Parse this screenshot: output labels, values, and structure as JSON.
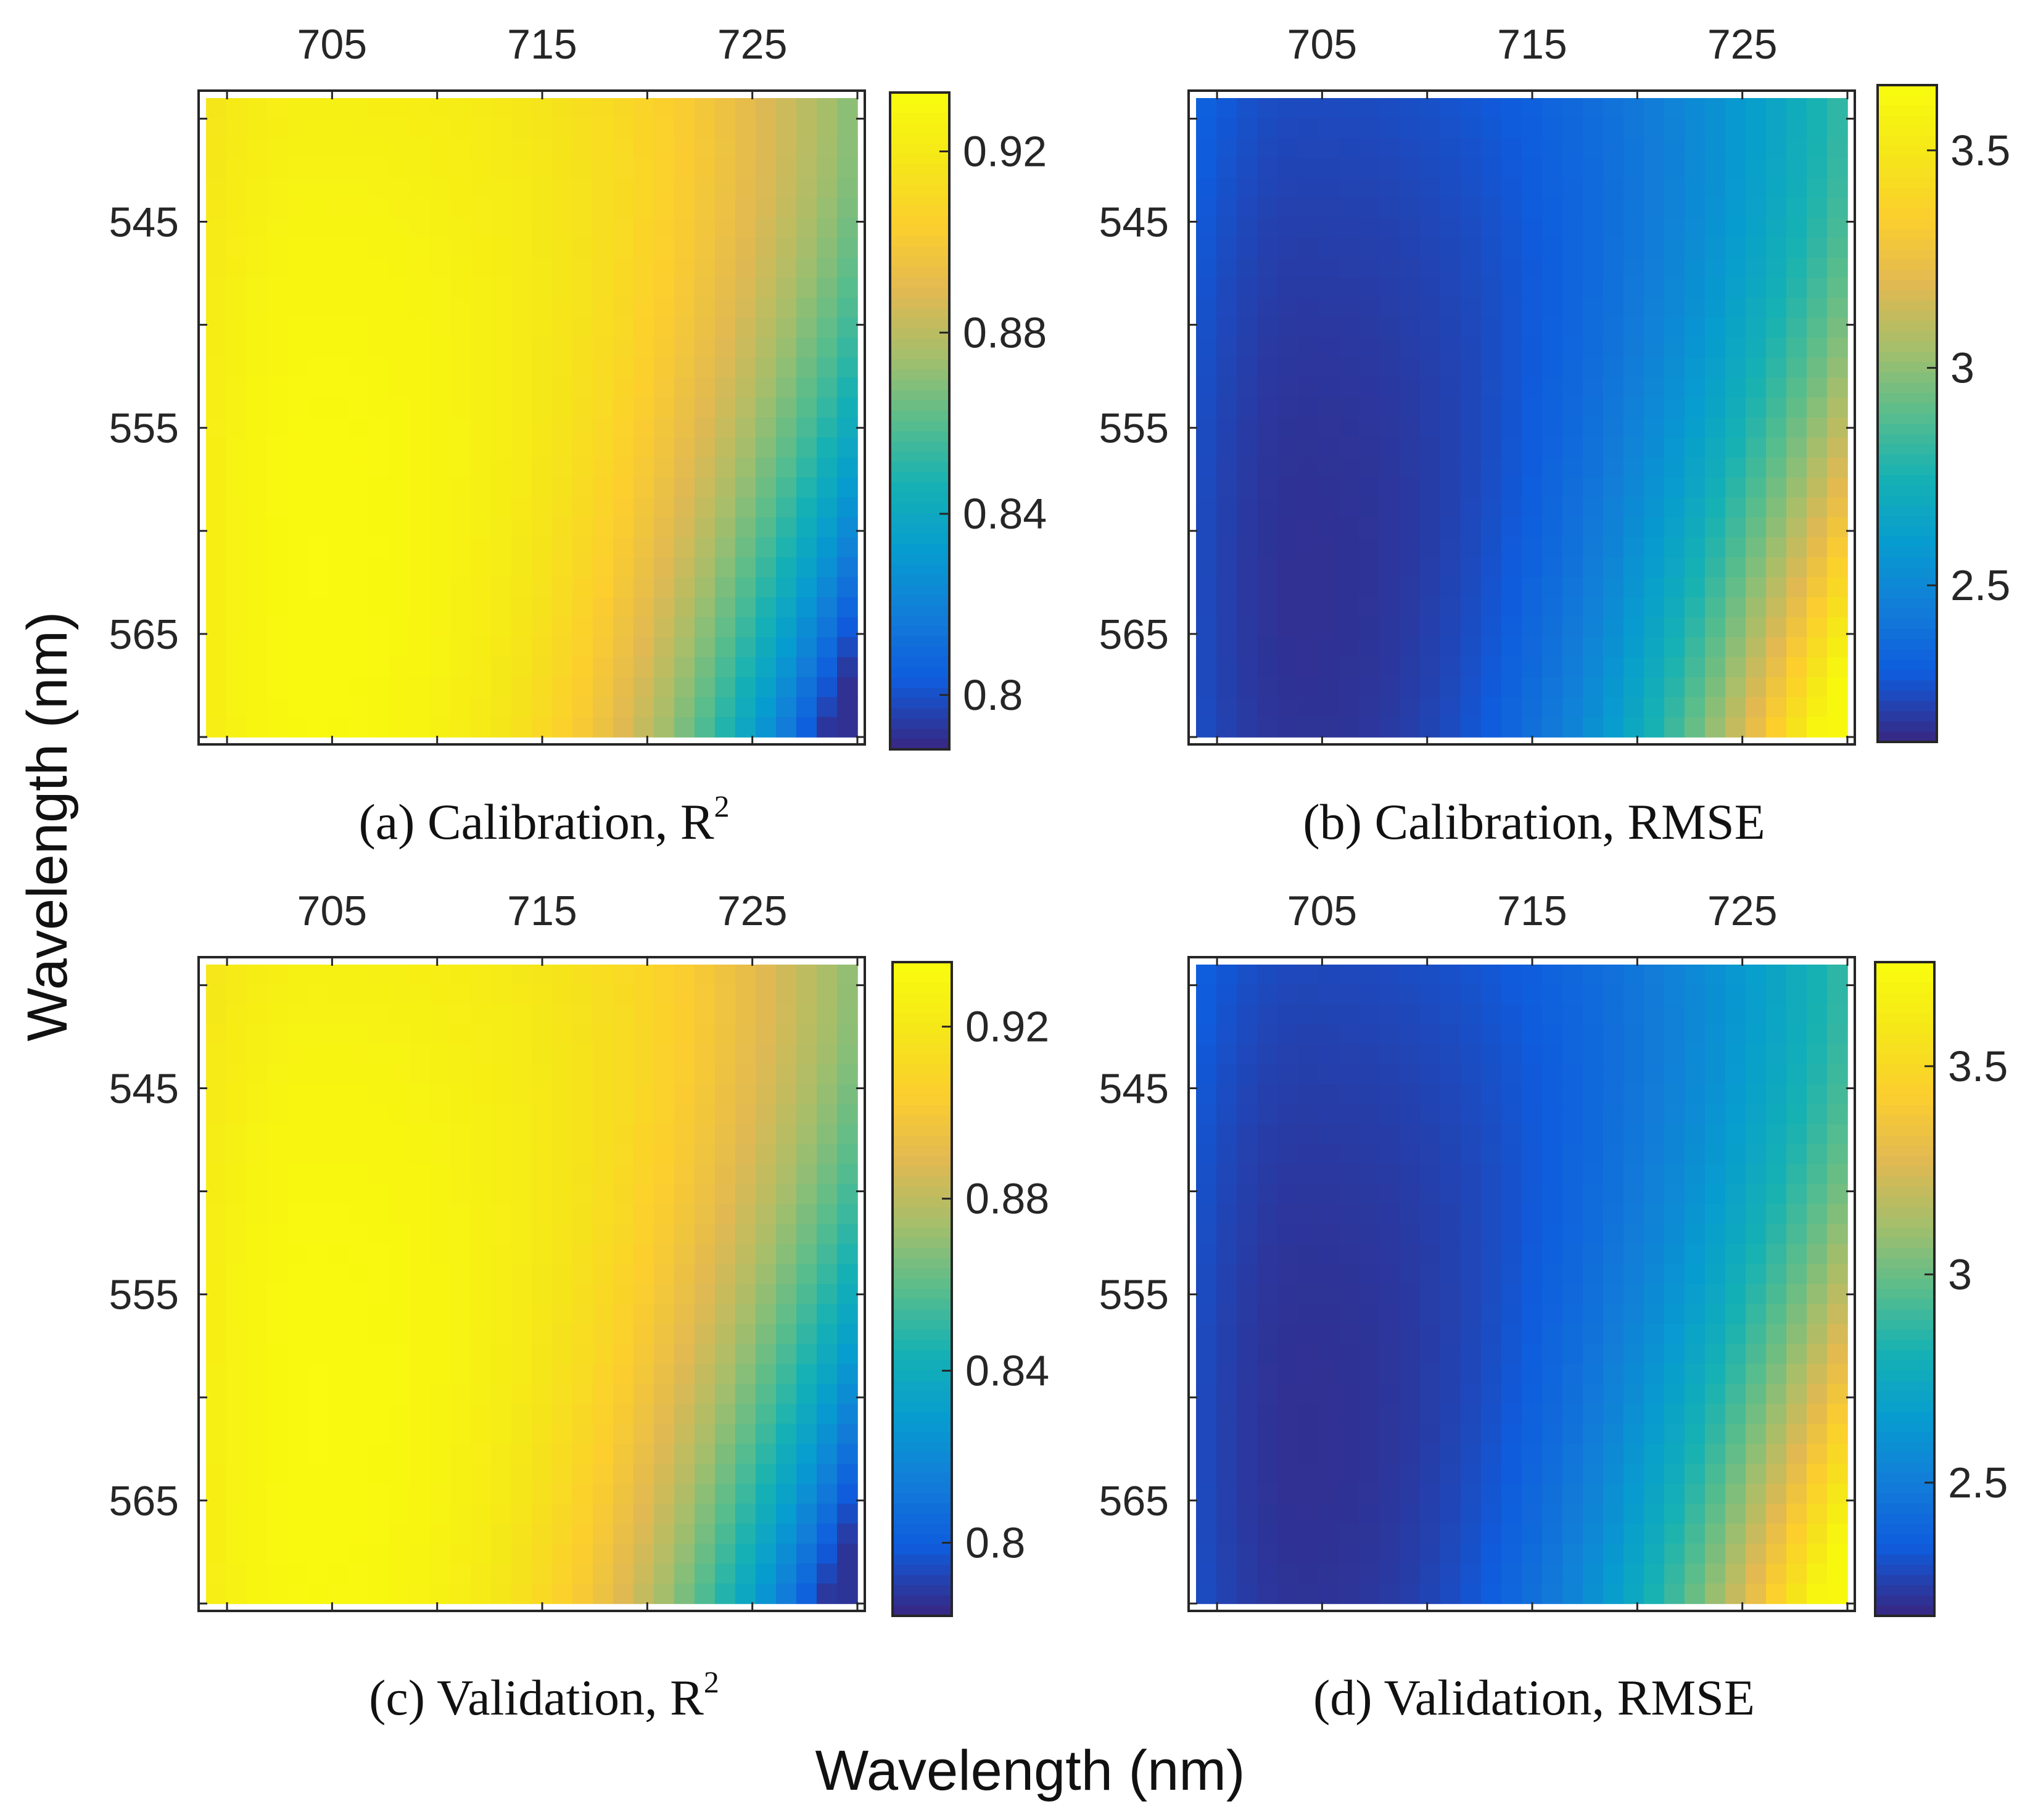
{
  "figure": {
    "xlabel": "Wavelength (nm)",
    "ylabel": "Wavelength (nm)"
  },
  "chart_data": [
    {
      "type": "heatmap",
      "id": "a",
      "caption": "(a) Calibration, R",
      "caption_sup": "2",
      "metric": "R2",
      "x_ticks": [
        "705",
        "715",
        "725"
      ],
      "y_ticks": [
        "545",
        "555",
        "565"
      ],
      "x_range": [
        699,
        730
      ],
      "y_range": [
        539,
        570
      ],
      "colorbar": {
        "min": 0.788,
        "max": 0.933,
        "ticks": [
          "0.92",
          "0.88",
          "0.84",
          "0.8"
        ],
        "tick_values": [
          0.92,
          0.88,
          0.84,
          0.8
        ]
      },
      "best": [
        704,
        562
      ],
      "value_best": 0.932,
      "value_worst": 0.79
    },
    {
      "type": "heatmap",
      "id": "b",
      "caption": "(b) Calibration, RMSE",
      "caption_sup": "",
      "metric": "RMSE",
      "x_ticks": [
        "705",
        "715",
        "725"
      ],
      "y_ticks": [
        "545",
        "555",
        "565"
      ],
      "x_range": [
        699,
        730
      ],
      "y_range": [
        539,
        570
      ],
      "colorbar": {
        "min": 2.14,
        "max": 3.65,
        "ticks": [
          "3.5",
          "3",
          "2.5"
        ],
        "tick_values": [
          3.5,
          3.0,
          2.5
        ]
      },
      "best": [
        704,
        563
      ],
      "value_best": 2.16,
      "value_worst": 3.63
    },
    {
      "type": "heatmap",
      "id": "c",
      "caption": "(c) Validation, R",
      "caption_sup": "2",
      "metric": "R2",
      "x_ticks": [
        "705",
        "715",
        "725"
      ],
      "y_ticks": [
        "545",
        "555",
        "565"
      ],
      "x_range": [
        699,
        730
      ],
      "y_range": [
        539,
        570
      ],
      "colorbar": {
        "min": 0.783,
        "max": 0.935,
        "ticks": [
          "0.92",
          "0.88",
          "0.84",
          "0.8"
        ],
        "tick_values": [
          0.92,
          0.88,
          0.84,
          0.8
        ]
      },
      "best": [
        704,
        561
      ],
      "value_best": 0.934,
      "value_worst": 0.786
    },
    {
      "type": "heatmap",
      "id": "d",
      "caption": "(d) Validation, RMSE",
      "caption_sup": "",
      "metric": "RMSE",
      "x_ticks": [
        "705",
        "715",
        "725"
      ],
      "y_ticks": [
        "545",
        "555",
        "565"
      ],
      "x_range": [
        699,
        730
      ],
      "y_range": [
        539,
        570
      ],
      "colorbar": {
        "min": 2.18,
        "max": 3.75,
        "ticks": [
          "3.5",
          "3",
          "2.5"
        ],
        "tick_values": [
          3.5,
          3.0,
          2.5
        ]
      },
      "best": [
        704,
        562
      ],
      "value_best": 2.2,
      "value_worst": 3.73
    }
  ]
}
